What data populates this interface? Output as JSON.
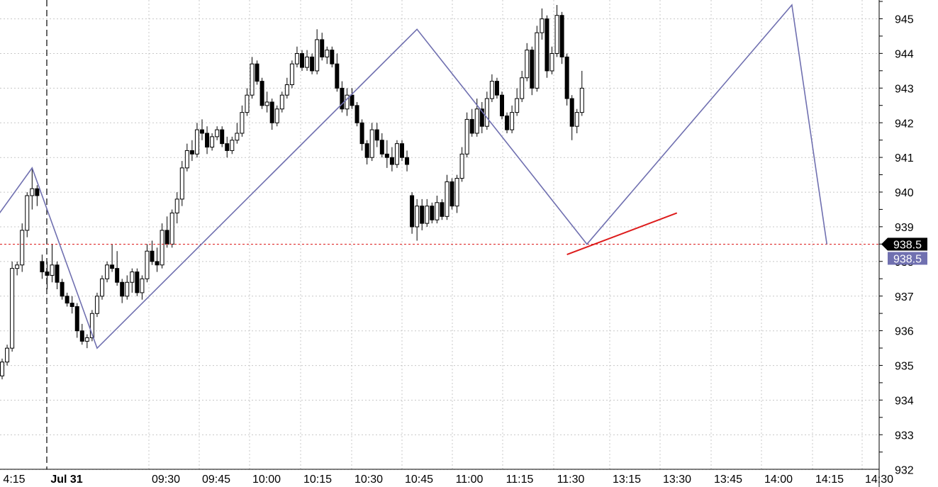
{
  "chart_data": {
    "type": "candlestick",
    "title": "",
    "xlabel": "",
    "ylabel": "",
    "ylim": [
      932,
      945.4
    ],
    "y_ticks": [
      945,
      944,
      943,
      942,
      941,
      940,
      939,
      938,
      937,
      936,
      935,
      934,
      933,
      932
    ],
    "x_ticks": [
      "4:15",
      "Jul 31",
      "09:30",
      "09:45",
      "10:00",
      "10:15",
      "10:30",
      "10:45",
      "11:00",
      "11:15",
      "11:30",
      "13:15",
      "13:30",
      "13:45",
      "14:00",
      "14:15",
      "14:30"
    ],
    "session_divider": "Jul 31",
    "grid": true,
    "candle_colors": {
      "up": "#ffffff",
      "down": "#000000",
      "outline": "#000000"
    },
    "candles_ohlc": [
      [
        934.7,
        935.2,
        934.6,
        935.1
      ],
      [
        935.1,
        935.6,
        935.0,
        935.5
      ],
      [
        935.5,
        938.0,
        935.4,
        937.8
      ],
      [
        937.8,
        938.0,
        937.6,
        937.9
      ],
      [
        937.9,
        939.1,
        937.7,
        938.9
      ],
      [
        938.9,
        940.0,
        938.7,
        939.9
      ],
      [
        939.9,
        940.7,
        939.5,
        940.1
      ],
      [
        940.1,
        940.2,
        939.6,
        939.9
      ],
      [
        938.0,
        938.2,
        937.5,
        937.7
      ],
      [
        937.7,
        938.0,
        937.2,
        937.6
      ],
      [
        937.6,
        938.5,
        937.4,
        937.9
      ],
      [
        937.9,
        938.0,
        937.2,
        937.4
      ],
      [
        937.4,
        937.5,
        936.9,
        937.0
      ],
      [
        937.0,
        937.1,
        936.7,
        936.8
      ],
      [
        936.8,
        937.0,
        936.5,
        936.7
      ],
      [
        936.7,
        936.8,
        935.8,
        936.0
      ],
      [
        936.0,
        936.2,
        935.6,
        935.7
      ],
      [
        935.7,
        935.9,
        935.5,
        935.8
      ],
      [
        935.8,
        936.6,
        935.7,
        936.5
      ],
      [
        936.5,
        937.1,
        936.4,
        937.0
      ],
      [
        937.0,
        937.6,
        936.9,
        937.5
      ],
      [
        937.5,
        938.0,
        937.4,
        937.9
      ],
      [
        937.9,
        938.5,
        937.7,
        937.8
      ],
      [
        937.8,
        938.3,
        937.3,
        937.4
      ],
      [
        937.4,
        937.5,
        936.8,
        937.0
      ],
      [
        937.0,
        937.6,
        936.9,
        937.4
      ],
      [
        937.4,
        937.8,
        937.1,
        937.7
      ],
      [
        937.7,
        937.8,
        937.0,
        937.1
      ],
      [
        937.1,
        937.6,
        936.9,
        937.5
      ],
      [
        937.5,
        938.5,
        937.4,
        938.3
      ],
      [
        938.3,
        938.6,
        937.9,
        938.0
      ],
      [
        938.0,
        938.4,
        937.7,
        937.9
      ],
      [
        937.9,
        939.1,
        937.8,
        938.9
      ],
      [
        938.9,
        939.3,
        938.4,
        938.5
      ],
      [
        938.5,
        939.5,
        938.4,
        939.4
      ],
      [
        939.4,
        940.0,
        939.1,
        939.8
      ],
      [
        939.8,
        940.9,
        939.6,
        940.7
      ],
      [
        940.7,
        941.4,
        940.6,
        941.2
      ],
      [
        941.2,
        941.5,
        940.9,
        941.1
      ],
      [
        941.1,
        942.0,
        941.0,
        941.8
      ],
      [
        941.8,
        942.1,
        941.5,
        941.7
      ],
      [
        941.7,
        941.9,
        941.1,
        941.3
      ],
      [
        941.3,
        941.7,
        941.2,
        941.6
      ],
      [
        941.6,
        941.9,
        941.5,
        941.8
      ],
      [
        941.8,
        941.9,
        941.3,
        941.4
      ],
      [
        941.4,
        941.6,
        941.0,
        941.2
      ],
      [
        941.2,
        941.6,
        941.1,
        941.5
      ],
      [
        941.5,
        942.0,
        941.4,
        941.7
      ],
      [
        941.7,
        942.5,
        941.6,
        942.3
      ],
      [
        942.3,
        943.0,
        942.2,
        942.8
      ],
      [
        942.8,
        943.9,
        942.7,
        943.7
      ],
      [
        943.7,
        943.8,
        943.1,
        943.2
      ],
      [
        943.2,
        943.3,
        942.4,
        942.5
      ],
      [
        942.5,
        942.9,
        942.3,
        942.6
      ],
      [
        942.6,
        942.7,
        941.8,
        942.0
      ],
      [
        942.0,
        942.5,
        941.9,
        942.4
      ],
      [
        942.4,
        942.9,
        942.3,
        942.8
      ],
      [
        942.8,
        943.3,
        942.7,
        943.1
      ],
      [
        943.1,
        943.8,
        943.0,
        943.7
      ],
      [
        943.7,
        944.2,
        943.6,
        944.0
      ],
      [
        944.0,
        944.1,
        943.5,
        943.6
      ],
      [
        943.6,
        944.1,
        943.5,
        943.9
      ],
      [
        943.9,
        944.0,
        943.4,
        943.5
      ],
      [
        943.5,
        944.7,
        943.4,
        944.4
      ],
      [
        944.4,
        944.6,
        943.8,
        943.9
      ],
      [
        943.9,
        944.2,
        943.7,
        944.1
      ],
      [
        944.1,
        944.2,
        943.6,
        943.7
      ],
      [
        943.7,
        944.0,
        942.9,
        943.0
      ],
      [
        943.0,
        943.2,
        942.3,
        942.4
      ],
      [
        942.4,
        943.0,
        942.2,
        942.8
      ],
      [
        942.8,
        943.0,
        942.4,
        942.5
      ],
      [
        942.5,
        942.6,
        941.9,
        942.0
      ],
      [
        942.0,
        942.1,
        941.2,
        941.4
      ],
      [
        941.4,
        941.5,
        940.8,
        941.0
      ],
      [
        941.0,
        942.0,
        940.9,
        941.8
      ],
      [
        941.8,
        942.0,
        941.3,
        941.5
      ],
      [
        941.5,
        941.7,
        941.0,
        941.1
      ],
      [
        941.1,
        941.5,
        940.7,
        941.0
      ],
      [
        941.0,
        941.3,
        940.6,
        940.8
      ],
      [
        940.8,
        941.5,
        940.7,
        941.4
      ],
      [
        941.4,
        941.5,
        940.9,
        941.0
      ],
      [
        941.0,
        941.2,
        940.6,
        940.8
      ],
      [
        939.9,
        940.0,
        938.8,
        939.0
      ],
      [
        939.0,
        939.8,
        938.6,
        939.6
      ],
      [
        939.6,
        939.8,
        938.9,
        939.1
      ],
      [
        939.1,
        939.8,
        939.0,
        939.6
      ],
      [
        939.6,
        939.7,
        939.1,
        939.2
      ],
      [
        939.2,
        939.9,
        939.1,
        939.7
      ],
      [
        939.7,
        939.8,
        939.2,
        939.3
      ],
      [
        939.3,
        940.5,
        939.2,
        940.3
      ],
      [
        940.3,
        940.4,
        939.5,
        939.6
      ],
      [
        939.6,
        940.5,
        939.4,
        940.4
      ],
      [
        940.4,
        941.3,
        940.3,
        941.1
      ],
      [
        941.1,
        942.3,
        941.0,
        942.1
      ],
      [
        942.1,
        942.4,
        941.6,
        941.7
      ],
      [
        941.7,
        942.7,
        941.6,
        942.4
      ],
      [
        942.4,
        942.6,
        941.7,
        941.9
      ],
      [
        941.9,
        942.9,
        941.8,
        942.7
      ],
      [
        942.7,
        943.4,
        942.6,
        943.2
      ],
      [
        943.2,
        943.3,
        942.7,
        942.8
      ],
      [
        942.8,
        942.9,
        942.1,
        942.2
      ],
      [
        942.2,
        942.3,
        941.7,
        941.8
      ],
      [
        941.8,
        942.5,
        941.7,
        942.3
      ],
      [
        942.3,
        943.0,
        942.2,
        942.7
      ],
      [
        942.7,
        943.5,
        942.6,
        943.3
      ],
      [
        943.3,
        944.3,
        943.2,
        944.1
      ],
      [
        944.1,
        944.2,
        942.8,
        943.0
      ],
      [
        943.0,
        944.8,
        942.9,
        944.6
      ],
      [
        944.6,
        945.3,
        944.4,
        945.0
      ],
      [
        945.0,
        945.1,
        943.3,
        943.5
      ],
      [
        943.5,
        944.2,
        943.4,
        944.0
      ],
      [
        944.0,
        945.4,
        943.9,
        945.1
      ],
      [
        945.1,
        945.2,
        943.7,
        943.9
      ],
      [
        943.9,
        944.0,
        942.5,
        942.7
      ],
      [
        942.7,
        942.8,
        941.5,
        941.9
      ],
      [
        941.9,
        942.4,
        941.7,
        942.3
      ],
      [
        942.3,
        943.5,
        942.2,
        943.0
      ]
    ],
    "zigzag_line": {
      "color": "#7070b0",
      "points": [
        [
          -3,
          938.9
        ],
        [
          6,
          940.7
        ],
        [
          19,
          935.5
        ],
        [
          83,
          944.7
        ],
        [
          117,
          938.5
        ],
        [
          158,
          945.4
        ],
        [
          165,
          938.5
        ]
      ]
    },
    "trendline": {
      "color": "#dd1c1c",
      "points": [
        [
          113,
          938.2
        ],
        [
          135,
          939.4
        ]
      ]
    },
    "horizontal_line": {
      "value": 938.5,
      "color": "#dd1c1c",
      "style": "dotted"
    },
    "price_labels": [
      {
        "text": "938.5",
        "bg": "#000000",
        "fg": "#ffffff"
      },
      {
        "text": "938.5",
        "bg": "#7070b0",
        "fg": "#ffffff"
      }
    ]
  }
}
